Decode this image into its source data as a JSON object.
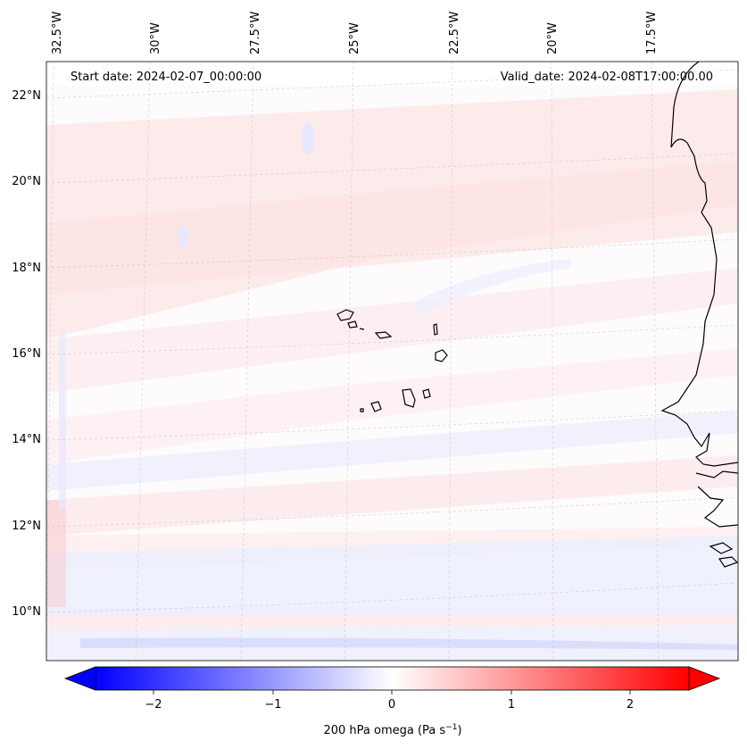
{
  "header": {
    "start_date": "Start date: 2024-02-07_00:00:00",
    "valid_date": "Valid_date: 2024-02-08T17:00:00.00"
  },
  "map": {
    "projection": "lambert-conformal",
    "lon_range": [
      -33.0,
      -15.5
    ],
    "lat_range": [
      9.0,
      22.5
    ],
    "gridlines": true,
    "coastline_color": "#000000",
    "lon_ticks": [
      "32.5°W",
      "30°W",
      "27.5°W",
      "25°W",
      "22.5°W",
      "20°W",
      "17.5°W"
    ],
    "lat_ticks": [
      "22°N",
      "20°N",
      "18°N",
      "16°N",
      "14°N",
      "12°N",
      "10°N"
    ]
  },
  "colorbar": {
    "colormap": "bwr",
    "range": [
      -2.5,
      2.5
    ],
    "ticks": [
      "−2",
      "−1",
      "0",
      "1",
      "2"
    ],
    "label": "200 hPa omega (Pa s",
    "label_exp": "−1",
    "label_end": ")",
    "extend": "both",
    "low_color": "#0000ff",
    "mid_color": "#ffffff",
    "high_color": "#ff0000"
  }
}
